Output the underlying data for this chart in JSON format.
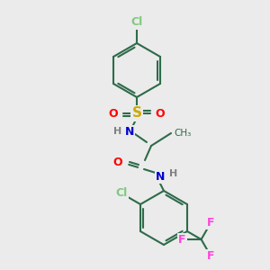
{
  "background_color": "#ebebeb",
  "bond_color": "#2d6b4a",
  "bond_width": 1.5,
  "atom_colors": {
    "Cl_top": "#7fc97f",
    "S": "#ccaa00",
    "O": "#ff0000",
    "N": "#0000cc",
    "H": "#808080",
    "Cl_right": "#7fc97f",
    "F": "#ff44dd",
    "C_bond": "#2d6b4a"
  },
  "figsize": [
    3.0,
    3.0
  ],
  "dpi": 100
}
